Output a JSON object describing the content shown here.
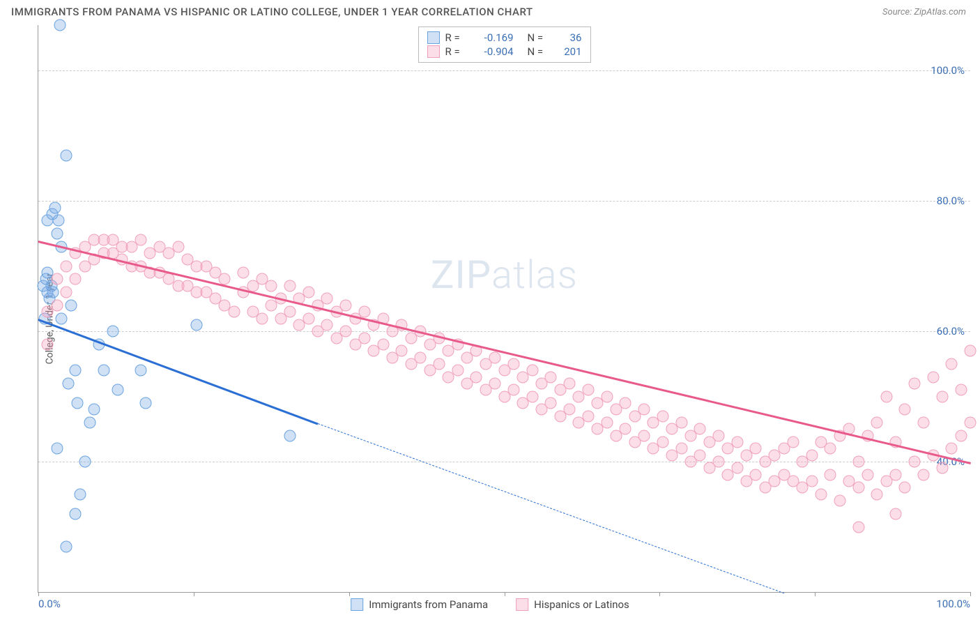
{
  "title": "IMMIGRANTS FROM PANAMA VS HISPANIC OR LATINO COLLEGE, UNDER 1 YEAR CORRELATION CHART",
  "source": "Source: ZipAtlas.com",
  "ylabel": "College, Under 1 year",
  "watermark": "ZIPatlas",
  "chart": {
    "type": "scatter",
    "background_color": "#ffffff",
    "grid_color": "#cccccc",
    "axis_color": "#999999",
    "label_color": "#3b6fb5",
    "xlim": [
      0,
      100
    ],
    "ylim": [
      20,
      107
    ],
    "xtick_positions": [
      0,
      16.67,
      33.33,
      50,
      66.67,
      83.33,
      100
    ],
    "xtick_labels_shown": {
      "0": "0.0%",
      "100": "100.0%"
    },
    "ytick_positions": [
      40,
      60,
      80,
      100
    ],
    "ytick_labels": [
      "40.0%",
      "60.0%",
      "80.0%",
      "100.0%"
    ],
    "point_radius": 8.5,
    "series": [
      {
        "name": "Immigrants from Panama",
        "fill": "rgba(120,170,230,0.35)",
        "stroke": "#6aa3e0",
        "trend_color": "#2b6fd4",
        "r_value": "-0.169",
        "n_value": "36",
        "trend": {
          "x1": 0,
          "y1": 62,
          "x2_solid": 30,
          "y2_solid": 46,
          "x2": 80,
          "y2": 20
        },
        "points": [
          [
            0.5,
            67
          ],
          [
            0.8,
            68
          ],
          [
            1.0,
            66
          ],
          [
            1.2,
            65
          ],
          [
            1.0,
            69
          ],
          [
            1.4,
            67
          ],
          [
            1.6,
            66
          ],
          [
            1.0,
            77
          ],
          [
            1.5,
            78
          ],
          [
            1.8,
            79
          ],
          [
            2.0,
            75
          ],
          [
            2.2,
            77
          ],
          [
            2.5,
            73
          ],
          [
            2.3,
            107
          ],
          [
            3.0,
            87
          ],
          [
            3.5,
            64
          ],
          [
            4.0,
            54
          ],
          [
            4.2,
            49
          ],
          [
            4.5,
            35
          ],
          [
            5.0,
            40
          ],
          [
            5.5,
            46
          ],
          [
            6.0,
            48
          ],
          [
            6.5,
            58
          ],
          [
            7.0,
            54
          ],
          [
            8.0,
            60
          ],
          [
            8.5,
            51
          ],
          [
            11,
            54
          ],
          [
            11.5,
            49
          ],
          [
            3.0,
            27
          ],
          [
            4.0,
            32
          ],
          [
            2.5,
            62
          ],
          [
            0.7,
            62
          ],
          [
            17,
            61
          ],
          [
            27,
            44
          ],
          [
            2.0,
            42
          ],
          [
            3.2,
            52
          ]
        ]
      },
      {
        "name": "Hispanics or Latinos",
        "fill": "rgba(245,160,190,0.35)",
        "stroke": "#f0a0bc",
        "trend_color": "#e85a8c",
        "r_value": "-0.904",
        "n_value": "201",
        "trend": {
          "x1": 0,
          "y1": 74,
          "x2_solid": 100,
          "y2_solid": 40,
          "x2": 100,
          "y2": 40
        },
        "points": [
          [
            1,
            58
          ],
          [
            1,
            63
          ],
          [
            2,
            64
          ],
          [
            2,
            68
          ],
          [
            3,
            66
          ],
          [
            3,
            70
          ],
          [
            4,
            68
          ],
          [
            4,
            72
          ],
          [
            5,
            70
          ],
          [
            5,
            73
          ],
          [
            6,
            71
          ],
          [
            6,
            74
          ],
          [
            7,
            72
          ],
          [
            7,
            74
          ],
          [
            8,
            72
          ],
          [
            8,
            74
          ],
          [
            9,
            71
          ],
          [
            9,
            73
          ],
          [
            10,
            70
          ],
          [
            10,
            73
          ],
          [
            11,
            70
          ],
          [
            11,
            74
          ],
          [
            12,
            69
          ],
          [
            12,
            72
          ],
          [
            13,
            69
          ],
          [
            13,
            73
          ],
          [
            14,
            68
          ],
          [
            14,
            72
          ],
          [
            15,
            67
          ],
          [
            15,
            73
          ],
          [
            16,
            67
          ],
          [
            16,
            71
          ],
          [
            17,
            66
          ],
          [
            17,
            70
          ],
          [
            18,
            66
          ],
          [
            18,
            70
          ],
          [
            19,
            65
          ],
          [
            19,
            69
          ],
          [
            20,
            64
          ],
          [
            20,
            68
          ],
          [
            21,
            63
          ],
          [
            22,
            66
          ],
          [
            22,
            69
          ],
          [
            23,
            63
          ],
          [
            23,
            67
          ],
          [
            24,
            62
          ],
          [
            24,
            68
          ],
          [
            25,
            64
          ],
          [
            25,
            67
          ],
          [
            26,
            62
          ],
          [
            26,
            65
          ],
          [
            27,
            63
          ],
          [
            27,
            67
          ],
          [
            28,
            61
          ],
          [
            28,
            65
          ],
          [
            29,
            62
          ],
          [
            29,
            66
          ],
          [
            30,
            60
          ],
          [
            30,
            64
          ],
          [
            31,
            61
          ],
          [
            31,
            65
          ],
          [
            32,
            59
          ],
          [
            32,
            63
          ],
          [
            33,
            60
          ],
          [
            33,
            64
          ],
          [
            34,
            58
          ],
          [
            34,
            62
          ],
          [
            35,
            59
          ],
          [
            35,
            63
          ],
          [
            36,
            57
          ],
          [
            36,
            61
          ],
          [
            37,
            58
          ],
          [
            37,
            62
          ],
          [
            38,
            56
          ],
          [
            38,
            60
          ],
          [
            39,
            57
          ],
          [
            39,
            61
          ],
          [
            40,
            55
          ],
          [
            40,
            59
          ],
          [
            41,
            56
          ],
          [
            41,
            60
          ],
          [
            42,
            54
          ],
          [
            42,
            58
          ],
          [
            43,
            55
          ],
          [
            43,
            59
          ],
          [
            44,
            53
          ],
          [
            44,
            57
          ],
          [
            45,
            54
          ],
          [
            45,
            58
          ],
          [
            46,
            52
          ],
          [
            46,
            56
          ],
          [
            47,
            53
          ],
          [
            47,
            57
          ],
          [
            48,
            51
          ],
          [
            48,
            55
          ],
          [
            49,
            52
          ],
          [
            49,
            56
          ],
          [
            50,
            50
          ],
          [
            50,
            54
          ],
          [
            51,
            51
          ],
          [
            51,
            55
          ],
          [
            52,
            49
          ],
          [
            52,
            53
          ],
          [
            53,
            50
          ],
          [
            53,
            54
          ],
          [
            54,
            48
          ],
          [
            54,
            52
          ],
          [
            55,
            49
          ],
          [
            55,
            53
          ],
          [
            56,
            47
          ],
          [
            56,
            51
          ],
          [
            57,
            48
          ],
          [
            57,
            52
          ],
          [
            58,
            46
          ],
          [
            58,
            50
          ],
          [
            59,
            47
          ],
          [
            59,
            51
          ],
          [
            60,
            45
          ],
          [
            60,
            49
          ],
          [
            61,
            46
          ],
          [
            61,
            50
          ],
          [
            62,
            44
          ],
          [
            62,
            48
          ],
          [
            63,
            45
          ],
          [
            63,
            49
          ],
          [
            64,
            43
          ],
          [
            64,
            47
          ],
          [
            65,
            44
          ],
          [
            65,
            48
          ],
          [
            66,
            42
          ],
          [
            66,
            46
          ],
          [
            67,
            43
          ],
          [
            67,
            47
          ],
          [
            68,
            41
          ],
          [
            68,
            45
          ],
          [
            69,
            42
          ],
          [
            69,
            46
          ],
          [
            70,
            40
          ],
          [
            70,
            44
          ],
          [
            71,
            41
          ],
          [
            71,
            45
          ],
          [
            72,
            39
          ],
          [
            72,
            43
          ],
          [
            73,
            40
          ],
          [
            73,
            44
          ],
          [
            74,
            38
          ],
          [
            74,
            42
          ],
          [
            75,
            39
          ],
          [
            75,
            43
          ],
          [
            76,
            37
          ],
          [
            76,
            41
          ],
          [
            77,
            38
          ],
          [
            77,
            42
          ],
          [
            78,
            36
          ],
          [
            78,
            40
          ],
          [
            79,
            37
          ],
          [
            79,
            41
          ],
          [
            80,
            38
          ],
          [
            80,
            42
          ],
          [
            81,
            37
          ],
          [
            81,
            43
          ],
          [
            82,
            36
          ],
          [
            82,
            40
          ],
          [
            83,
            37
          ],
          [
            83,
            41
          ],
          [
            84,
            35
          ],
          [
            84,
            43
          ],
          [
            85,
            38
          ],
          [
            85,
            42
          ],
          [
            86,
            34
          ],
          [
            86,
            44
          ],
          [
            87,
            37
          ],
          [
            87,
            45
          ],
          [
            88,
            36
          ],
          [
            88,
            40
          ],
          [
            89,
            38
          ],
          [
            89,
            44
          ],
          [
            90,
            35
          ],
          [
            90,
            46
          ],
          [
            91,
            37
          ],
          [
            91,
            50
          ],
          [
            92,
            38
          ],
          [
            92,
            43
          ],
          [
            93,
            36
          ],
          [
            93,
            48
          ],
          [
            94,
            40
          ],
          [
            94,
            52
          ],
          [
            95,
            38
          ],
          [
            95,
            46
          ],
          [
            96,
            41
          ],
          [
            96,
            53
          ],
          [
            97,
            39
          ],
          [
            97,
            50
          ],
          [
            98,
            42
          ],
          [
            98,
            55
          ],
          [
            99,
            44
          ],
          [
            99,
            51
          ],
          [
            100,
            46
          ],
          [
            100,
            57
          ],
          [
            88,
            30
          ],
          [
            92,
            32
          ]
        ]
      }
    ]
  },
  "legend_top": [
    {
      "swatch_fill": "rgba(120,170,230,0.35)",
      "swatch_stroke": "#6aa3e0",
      "r": "-0.169",
      "n": "36"
    },
    {
      "swatch_fill": "rgba(245,160,190,0.35)",
      "swatch_stroke": "#f0a0bc",
      "r": "-0.904",
      "n": "201"
    }
  ],
  "legend_bottom": [
    {
      "swatch_fill": "rgba(120,170,230,0.35)",
      "swatch_stroke": "#6aa3e0",
      "label": "Immigrants from Panama"
    },
    {
      "swatch_fill": "rgba(245,160,190,0.35)",
      "swatch_stroke": "#f0a0bc",
      "label": "Hispanics or Latinos"
    }
  ]
}
